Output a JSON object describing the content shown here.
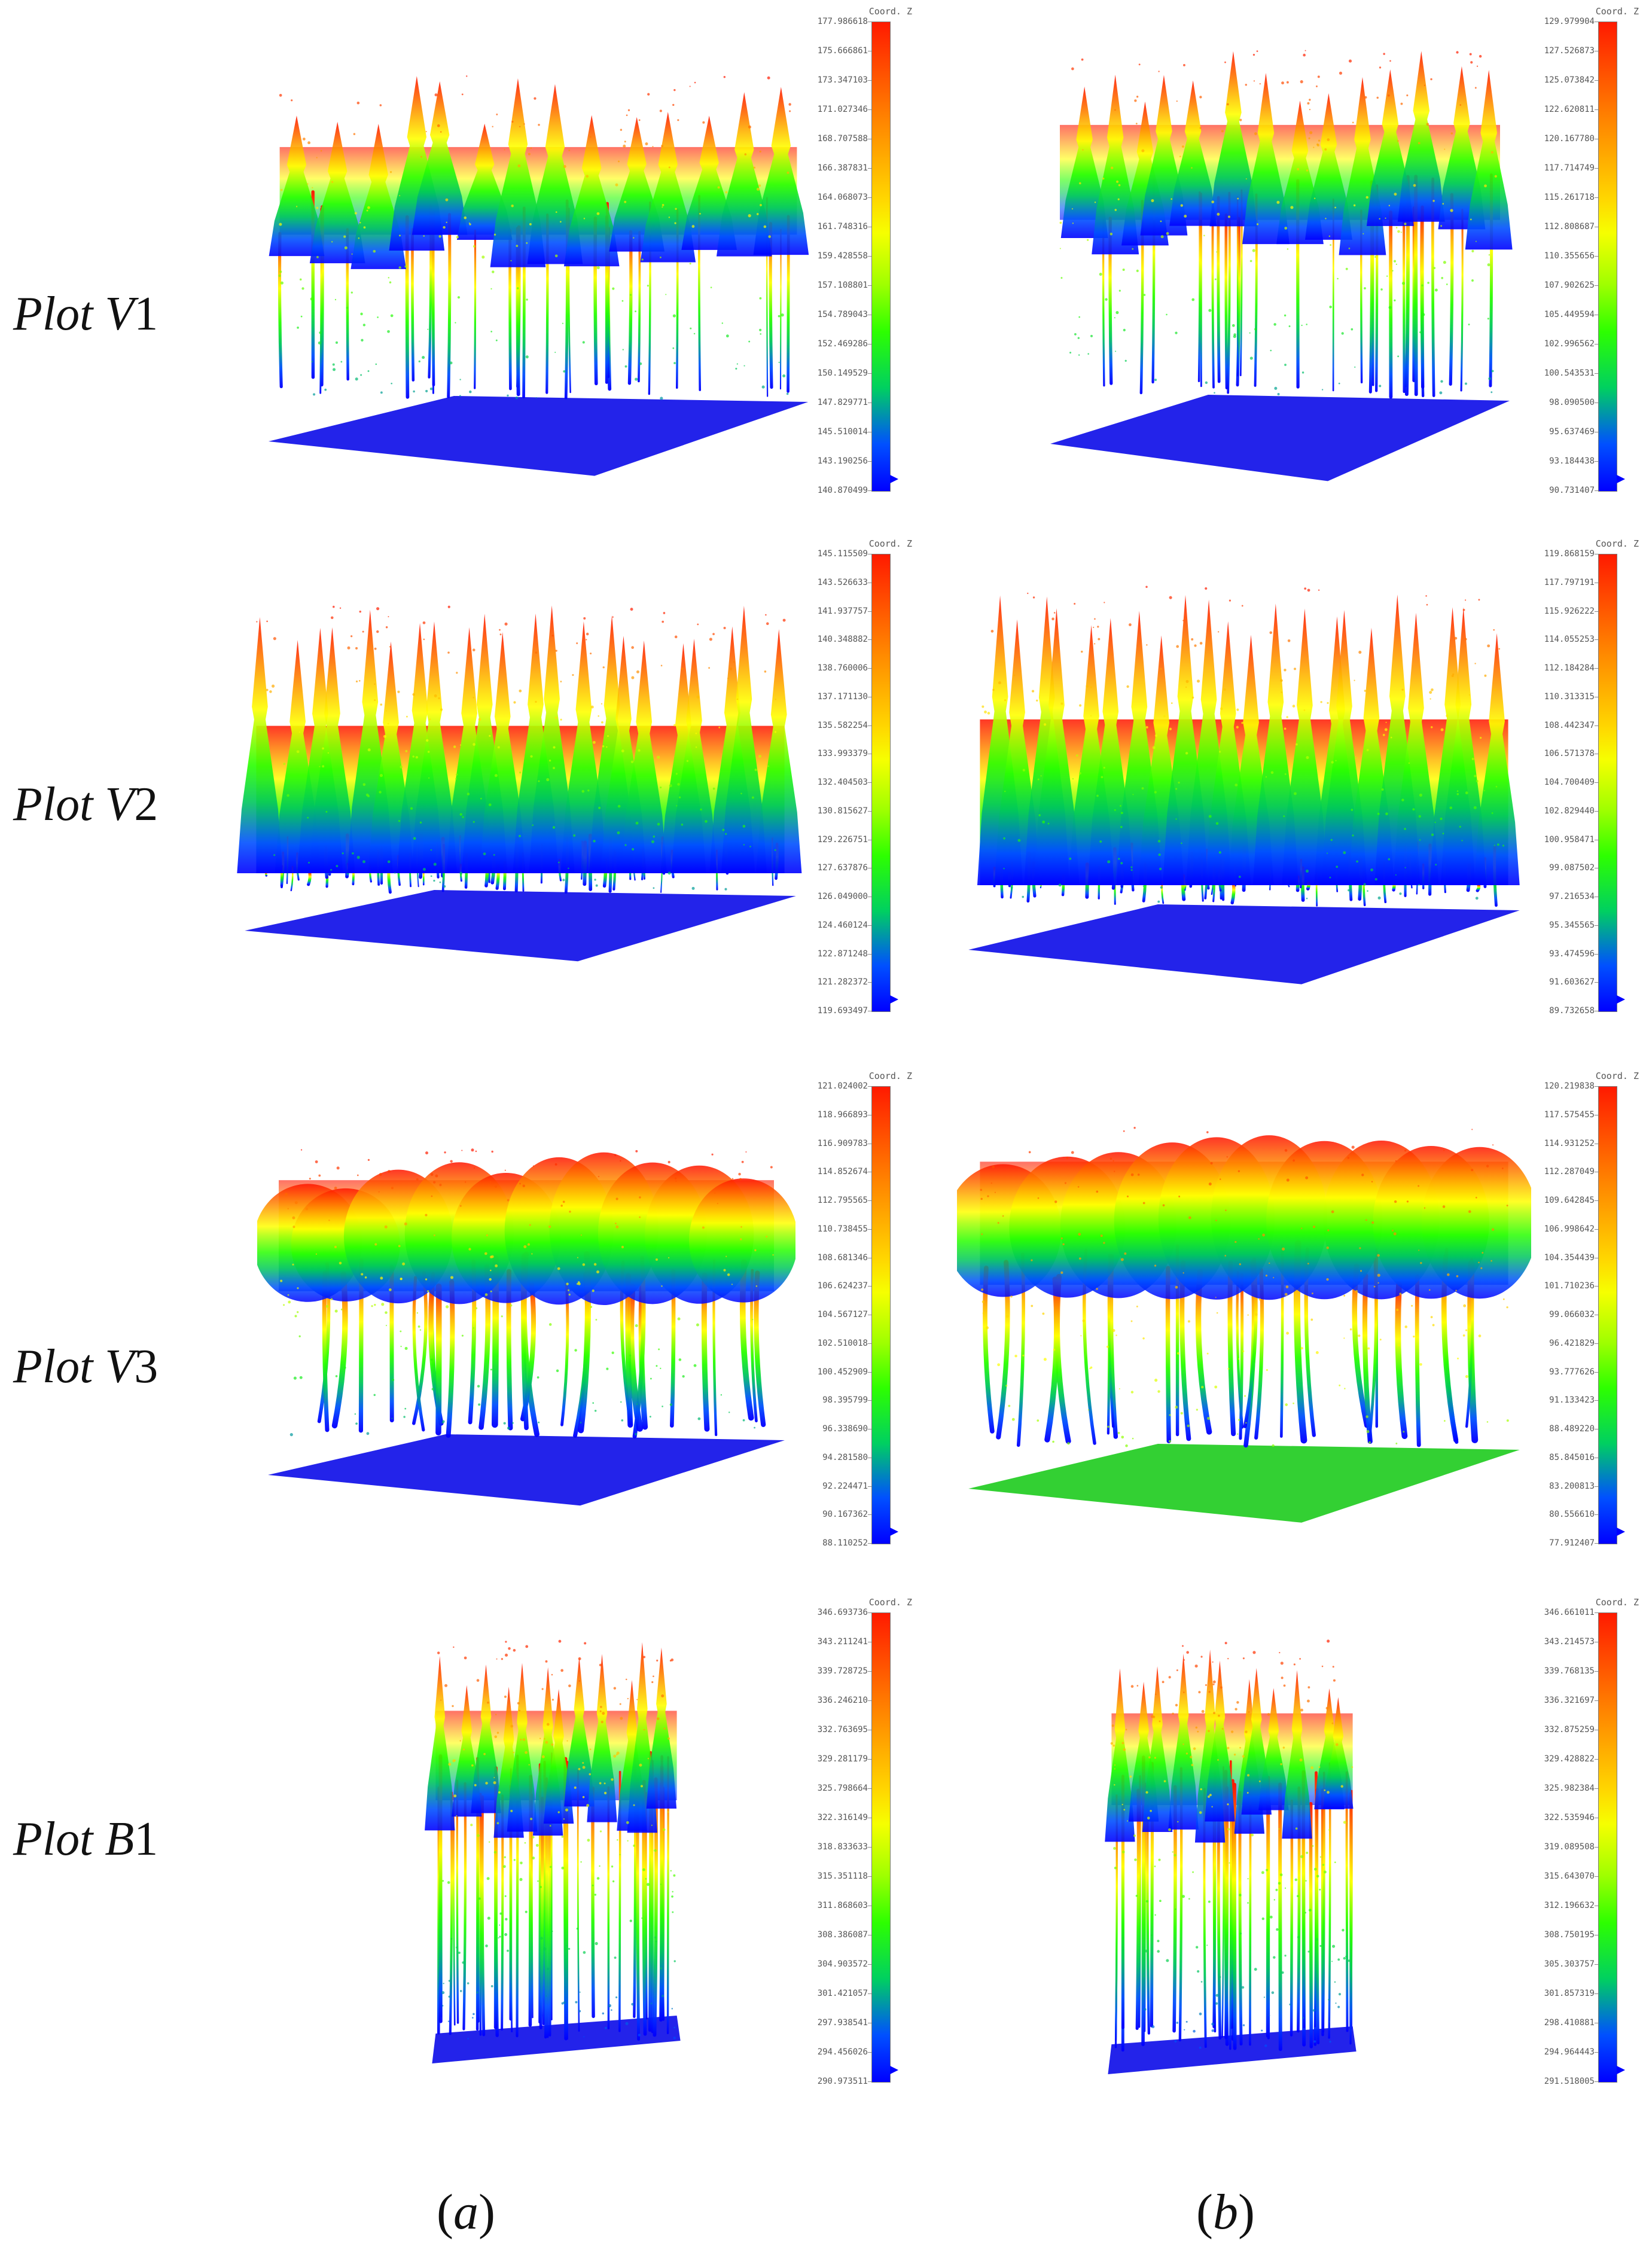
{
  "rows": [
    {
      "label_main": "Plot ",
      "label_var": "V",
      "label_num": "1",
      "style": "conifer"
    },
    {
      "label_main": "Plot ",
      "label_var": "V",
      "label_num": "2",
      "style": "dense"
    },
    {
      "label_main": "Plot ",
      "label_var": "V",
      "label_num": "3",
      "style": "broad"
    },
    {
      "label_main": "Plot ",
      "label_var": "B",
      "label_num": "1",
      "style": "tall"
    }
  ],
  "scales": {
    "caption": "Coord. Z",
    "a": [
      [
        "177.986618",
        "175.666861",
        "173.347103",
        "171.027346",
        "168.707588",
        "166.387831",
        "164.068073",
        "161.748316",
        "159.428558",
        "157.108801",
        "154.789043",
        "152.469286",
        "150.149529",
        "147.829771",
        "145.510014",
        "143.190256",
        "140.870499"
      ],
      [
        "145.115509",
        "143.526633",
        "141.937757",
        "140.348882",
        "138.760006",
        "137.171130",
        "135.582254",
        "133.993379",
        "132.404503",
        "130.815627",
        "129.226751",
        "127.637876",
        "126.049000",
        "124.460124",
        "122.871248",
        "121.282372",
        "119.693497"
      ],
      [
        "121.024002",
        "118.966893",
        "116.909783",
        "114.852674",
        "112.795565",
        "110.738455",
        "108.681346",
        "106.624237",
        "104.567127",
        "102.510018",
        "100.452909",
        "98.395799",
        "96.338690",
        "94.281580",
        "92.224471",
        "90.167362",
        "88.110252"
      ],
      [
        "346.693736",
        "343.211241",
        "339.728725",
        "336.246210",
        "332.763695",
        "329.281179",
        "325.798664",
        "322.316149",
        "318.833633",
        "315.351118",
        "311.868603",
        "308.386087",
        "304.903572",
        "301.421057",
        "297.938541",
        "294.456026",
        "290.973511"
      ]
    ],
    "b": [
      [
        "129.979904",
        "127.526873",
        "125.073842",
        "122.620811",
        "120.167780",
        "117.714749",
        "115.261718",
        "112.808687",
        "110.355656",
        "107.902625",
        "105.449594",
        "102.996562",
        "100.543531",
        "98.090500",
        "95.637469",
        "93.184438",
        "90.731407"
      ],
      [
        "119.868159",
        "117.797191",
        "115.926222",
        "114.055253",
        "112.184284",
        "110.313315",
        "108.442347",
        "106.571378",
        "104.700409",
        "102.829440",
        "100.958471",
        "99.087502",
        "97.216534",
        "95.345565",
        "93.474596",
        "91.603627",
        "89.732658"
      ],
      [
        "120.219838",
        "117.575455",
        "114.931252",
        "112.287049",
        "109.642845",
        "106.998642",
        "104.354439",
        "101.710236",
        "99.066032",
        "96.421829",
        "93.777626",
        "91.133423",
        "88.489220",
        "85.845016",
        "83.200813",
        "80.556610",
        "77.912407"
      ],
      [
        "346.661011",
        "343.214573",
        "339.768135",
        "336.321697",
        "332.875259",
        "329.428822",
        "325.982384",
        "322.535946",
        "319.089508",
        "315.643070",
        "312.196632",
        "308.750195",
        "305.303757",
        "301.857319",
        "298.410881",
        "294.964443",
        "291.518005"
      ]
    ]
  },
  "columns": [
    {
      "pre": "(",
      "var": "a",
      "post": ")"
    },
    {
      "pre": "(",
      "var": "b",
      "post": ")"
    }
  ]
}
